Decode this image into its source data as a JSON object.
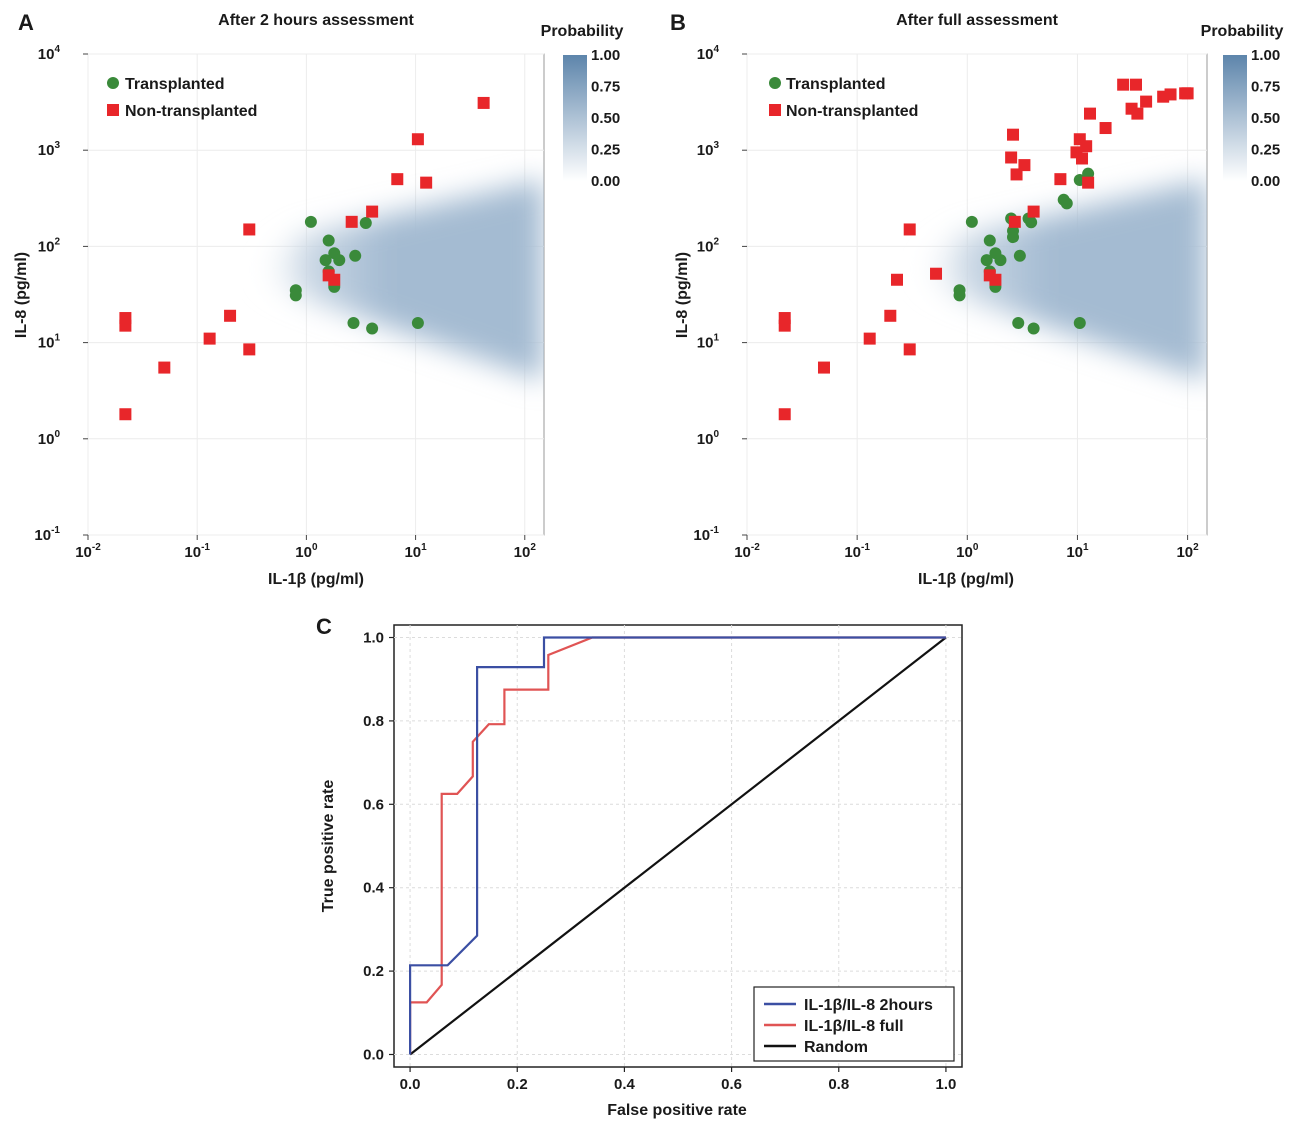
{
  "panels": [
    {
      "label": "A",
      "chart_data": {
        "type": "scatter",
        "title": "After 2 hours assessment",
        "xlabel": "IL-1β (pg/ml)",
        "ylabel": "IL-8 (pg/ml)",
        "xscale": "log",
        "yscale": "log",
        "xlim": [
          0.01,
          150
        ],
        "ylim": [
          0.1,
          10000
        ],
        "x_ticks": [
          {
            "base": "10",
            "exp": "-2"
          },
          {
            "base": "10",
            "exp": "-1"
          },
          {
            "base": "10",
            "exp": "0"
          },
          {
            "base": "10",
            "exp": "1"
          },
          {
            "base": "10",
            "exp": "2"
          }
        ],
        "y_ticks": [
          {
            "base": "10",
            "exp": "-1"
          },
          {
            "base": "10",
            "exp": "0"
          },
          {
            "base": "10",
            "exp": "1"
          },
          {
            "base": "10",
            "exp": "2"
          },
          {
            "base": "10",
            "exp": "3"
          },
          {
            "base": "10",
            "exp": "4"
          }
        ],
        "grid": true,
        "legend_position": "top-left",
        "background": "probability heatmap, wedge opening to the right",
        "colorbar": {
          "title": "Probability",
          "ticks": [
            "1.00",
            "0.75",
            "0.50",
            "0.25",
            "0.00"
          ],
          "color_high": "#5d85ab",
          "color_low": "#ffffff"
        },
        "series": [
          {
            "name": "Transplanted",
            "marker": "circle",
            "color": "#3a8a3a",
            "points": [
              [
                1.1,
                180
              ],
              [
                1.6,
                115
              ],
              [
                1.8,
                85
              ],
              [
                2.0,
                72
              ],
              [
                1.5,
                72
              ],
              [
                1.6,
                55
              ],
              [
                1.8,
                38
              ],
              [
                2.8,
                80
              ],
              [
                3.5,
                175
              ],
              [
                0.8,
                35
              ],
              [
                0.8,
                31
              ],
              [
                2.7,
                16
              ],
              [
                4.0,
                14
              ],
              [
                10.5,
                16
              ]
            ]
          },
          {
            "name": "Non-transplanted",
            "marker": "square",
            "color": "#e8262a",
            "points": [
              [
                0.022,
                18
              ],
              [
                0.022,
                15
              ],
              [
                0.022,
                1.8
              ],
              [
                0.05,
                5.5
              ],
              [
                0.13,
                11
              ],
              [
                0.2,
                19
              ],
              [
                0.3,
                8.5
              ],
              [
                0.3,
                150
              ],
              [
                1.6,
                50
              ],
              [
                1.8,
                45
              ],
              [
                2.6,
                180
              ],
              [
                4.0,
                230
              ],
              [
                6.8,
                500
              ],
              [
                10.5,
                1300
              ],
              [
                12.5,
                460
              ],
              [
                42,
                3100
              ]
            ]
          }
        ]
      }
    },
    {
      "label": "B",
      "chart_data": {
        "type": "scatter",
        "title": "After full assessment",
        "xlabel": "IL-1β (pg/ml)",
        "ylabel": "IL-8 (pg/ml)",
        "xscale": "log",
        "yscale": "log",
        "xlim": [
          0.01,
          150
        ],
        "ylim": [
          0.1,
          10000
        ],
        "x_ticks": [
          {
            "base": "10",
            "exp": "-2"
          },
          {
            "base": "10",
            "exp": "-1"
          },
          {
            "base": "10",
            "exp": "0"
          },
          {
            "base": "10",
            "exp": "1"
          },
          {
            "base": "10",
            "exp": "2"
          }
        ],
        "y_ticks": [
          {
            "base": "10",
            "exp": "-1"
          },
          {
            "base": "10",
            "exp": "0"
          },
          {
            "base": "10",
            "exp": "1"
          },
          {
            "base": "10",
            "exp": "2"
          },
          {
            "base": "10",
            "exp": "3"
          },
          {
            "base": "10",
            "exp": "4"
          }
        ],
        "grid": true,
        "legend_position": "top-left",
        "background": "probability heatmap, wedge opening to the right",
        "colorbar": {
          "title": "Probability",
          "ticks": [
            "1.00",
            "0.75",
            "0.50",
            "0.25",
            "0.00"
          ],
          "color_high": "#5d85ab",
          "color_low": "#ffffff"
        },
        "series": [
          {
            "name": "Transplanted",
            "marker": "circle",
            "color": "#3a8a3a",
            "points": [
              [
                1.1,
                180
              ],
              [
                1.6,
                115
              ],
              [
                1.8,
                85
              ],
              [
                2.0,
                72
              ],
              [
                1.5,
                72
              ],
              [
                1.6,
                55
              ],
              [
                1.8,
                38
              ],
              [
                2.5,
                195
              ],
              [
                2.6,
                145
              ],
              [
                2.6,
                125
              ],
              [
                3.0,
                80
              ],
              [
                3.6,
                195
              ],
              [
                3.8,
                178
              ],
              [
                0.85,
                35
              ],
              [
                0.85,
                31
              ],
              [
                2.9,
                16
              ],
              [
                4.0,
                14
              ],
              [
                7.5,
                305
              ],
              [
                8.0,
                280
              ],
              [
                10.5,
                490
              ],
              [
                12.5,
                570
              ],
              [
                10.5,
                16
              ]
            ]
          },
          {
            "name": "Non-transplanted",
            "marker": "square",
            "color": "#e8262a",
            "points": [
              [
                0.022,
                18
              ],
              [
                0.022,
                15
              ],
              [
                0.022,
                1.8
              ],
              [
                0.05,
                5.5
              ],
              [
                0.13,
                11
              ],
              [
                0.2,
                19
              ],
              [
                0.3,
                8.5
              ],
              [
                0.3,
                150
              ],
              [
                0.23,
                45
              ],
              [
                0.52,
                52
              ],
              [
                1.6,
                50
              ],
              [
                1.8,
                45
              ],
              [
                2.5,
                840
              ],
              [
                2.6,
                1450
              ],
              [
                2.8,
                560
              ],
              [
                2.7,
                180
              ],
              [
                3.3,
                700
              ],
              [
                4.0,
                230
              ],
              [
                7.0,
                500
              ],
              [
                9.8,
                950
              ],
              [
                10.5,
                1300
              ],
              [
                11,
                820
              ],
              [
                12,
                1100
              ],
              [
                12.5,
                460
              ],
              [
                13,
                2400
              ],
              [
                18,
                1700
              ],
              [
                26,
                4800
              ],
              [
                31,
                2700
              ],
              [
                34,
                4800
              ],
              [
                35,
                2400
              ],
              [
                42,
                3200
              ],
              [
                60,
                3600
              ],
              [
                70,
                3800
              ],
              [
                95,
                3900
              ],
              [
                100,
                3900
              ]
            ]
          }
        ]
      }
    },
    {
      "label": "C",
      "chart_data": {
        "type": "line",
        "title": "",
        "xlabel": "False positive rate",
        "ylabel": "True positive rate",
        "xlim": [
          -0.03,
          1.03
        ],
        "ylim": [
          -0.03,
          1.03
        ],
        "x_ticks": [
          "0.0",
          "0.2",
          "0.4",
          "0.6",
          "0.8",
          "1.0"
        ],
        "y_ticks": [
          "0.0",
          "0.2",
          "0.4",
          "0.6",
          "0.8",
          "1.0"
        ],
        "grid": true,
        "legend_position": "bottom-right",
        "series": [
          {
            "name": "IL-1β/IL-8 2hours",
            "color": "#3b4fa3",
            "points": [
              [
                0,
                0
              ],
              [
                0,
                0.214
              ],
              [
                0.07,
                0.214
              ],
              [
                0.125,
                0.285
              ],
              [
                0.125,
                0.929
              ],
              [
                0.25,
                0.929
              ],
              [
                0.25,
                1.0
              ],
              [
                1.0,
                1.0
              ]
            ]
          },
          {
            "name": "IL-1β/IL-8 full",
            "color": "#e05454",
            "points": [
              [
                0,
                0
              ],
              [
                0,
                0.125
              ],
              [
                0.031,
                0.125
              ],
              [
                0.059,
                0.167
              ],
              [
                0.059,
                0.625
              ],
              [
                0.088,
                0.625
              ],
              [
                0.117,
                0.667
              ],
              [
                0.117,
                0.75
              ],
              [
                0.147,
                0.792
              ],
              [
                0.176,
                0.792
              ],
              [
                0.176,
                0.875
              ],
              [
                0.258,
                0.875
              ],
              [
                0.258,
                0.958
              ],
              [
                0.34,
                1.0
              ],
              [
                1.0,
                1.0
              ]
            ]
          },
          {
            "name": "Random",
            "color": "#111111",
            "points": [
              [
                0,
                0
              ],
              [
                1,
                1
              ]
            ]
          }
        ]
      }
    }
  ]
}
